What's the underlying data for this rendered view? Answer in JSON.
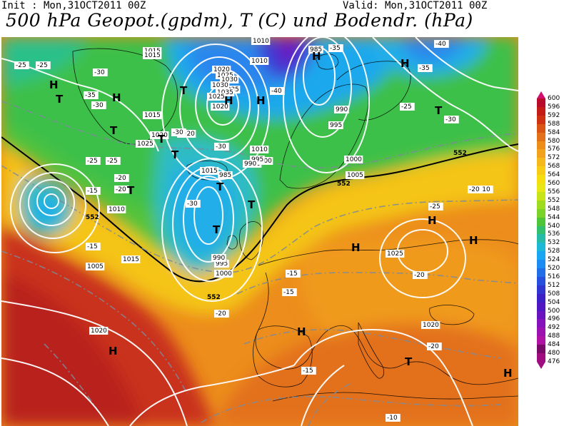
{
  "header": {
    "init_text": "Init : Mon,31OCT2011 00Z",
    "valid_text": "Valid: Mon,31OCT2011 00Z",
    "title": "500 hPa Geopot.(gpdm), T (C) und Bodendr. (hPa)"
  },
  "legend": {
    "levels": [
      600,
      596,
      592,
      588,
      584,
      580,
      576,
      572,
      568,
      564,
      560,
      556,
      552,
      548,
      544,
      540,
      536,
      532,
      528,
      524,
      520,
      516,
      512,
      508,
      504,
      500,
      496,
      492,
      488,
      484,
      480,
      476
    ],
    "colors": [
      "#d0106c",
      "#b90b2a",
      "#c41c17",
      "#cf3213",
      "#da5514",
      "#e3711a",
      "#ec8d1c",
      "#f2a31e",
      "#f6b91c",
      "#f8cc14",
      "#f6dd10",
      "#e8e614",
      "#c6e418",
      "#9fdc1f",
      "#7bd22b",
      "#4fc63a",
      "#33c06e",
      "#24bca6",
      "#1cb8d8",
      "#1aa6f2",
      "#1c8cf2",
      "#226ee8",
      "#2850de",
      "#3036cf",
      "#3c22c6",
      "#5018c2",
      "#6a14c0",
      "#8612bc",
      "#9c12b0",
      "#b012a4",
      "#7a0a68",
      "#a00d80"
    ]
  },
  "map": {
    "isobar_labels": [
      "1010",
      "1015",
      "1020",
      "1025",
      "1030",
      "1035",
      "985",
      "990",
      "995",
      "1000",
      "1005",
      "1025",
      "1020",
      "1015",
      "1010",
      "1015",
      "1020",
      "1025",
      "1020",
      "1015",
      "1010",
      "1005",
      "1000",
      "995",
      "990",
      "985",
      "1020",
      "1015",
      "1010",
      "1005",
      "1000",
      "995",
      "990",
      "1035",
      "1030",
      "1025",
      "1020"
    ],
    "temp_labels": [
      "-25",
      "-25",
      "-30",
      "-35",
      "-30",
      "-30",
      "-25",
      "-20",
      "-15",
      "-20",
      "-25",
      "-30",
      "-35",
      "-40",
      "-35",
      "-30",
      "-25",
      "-20",
      "-15",
      "-10",
      "-15",
      "-20",
      "-25",
      "-20",
      "-15",
      "-10",
      "-15",
      "-20",
      "-30",
      "-40"
    ],
    "height_labels": [
      "552",
      "552",
      "552",
      "552"
    ],
    "high_symbol": "H",
    "low_symbol": "T"
  }
}
